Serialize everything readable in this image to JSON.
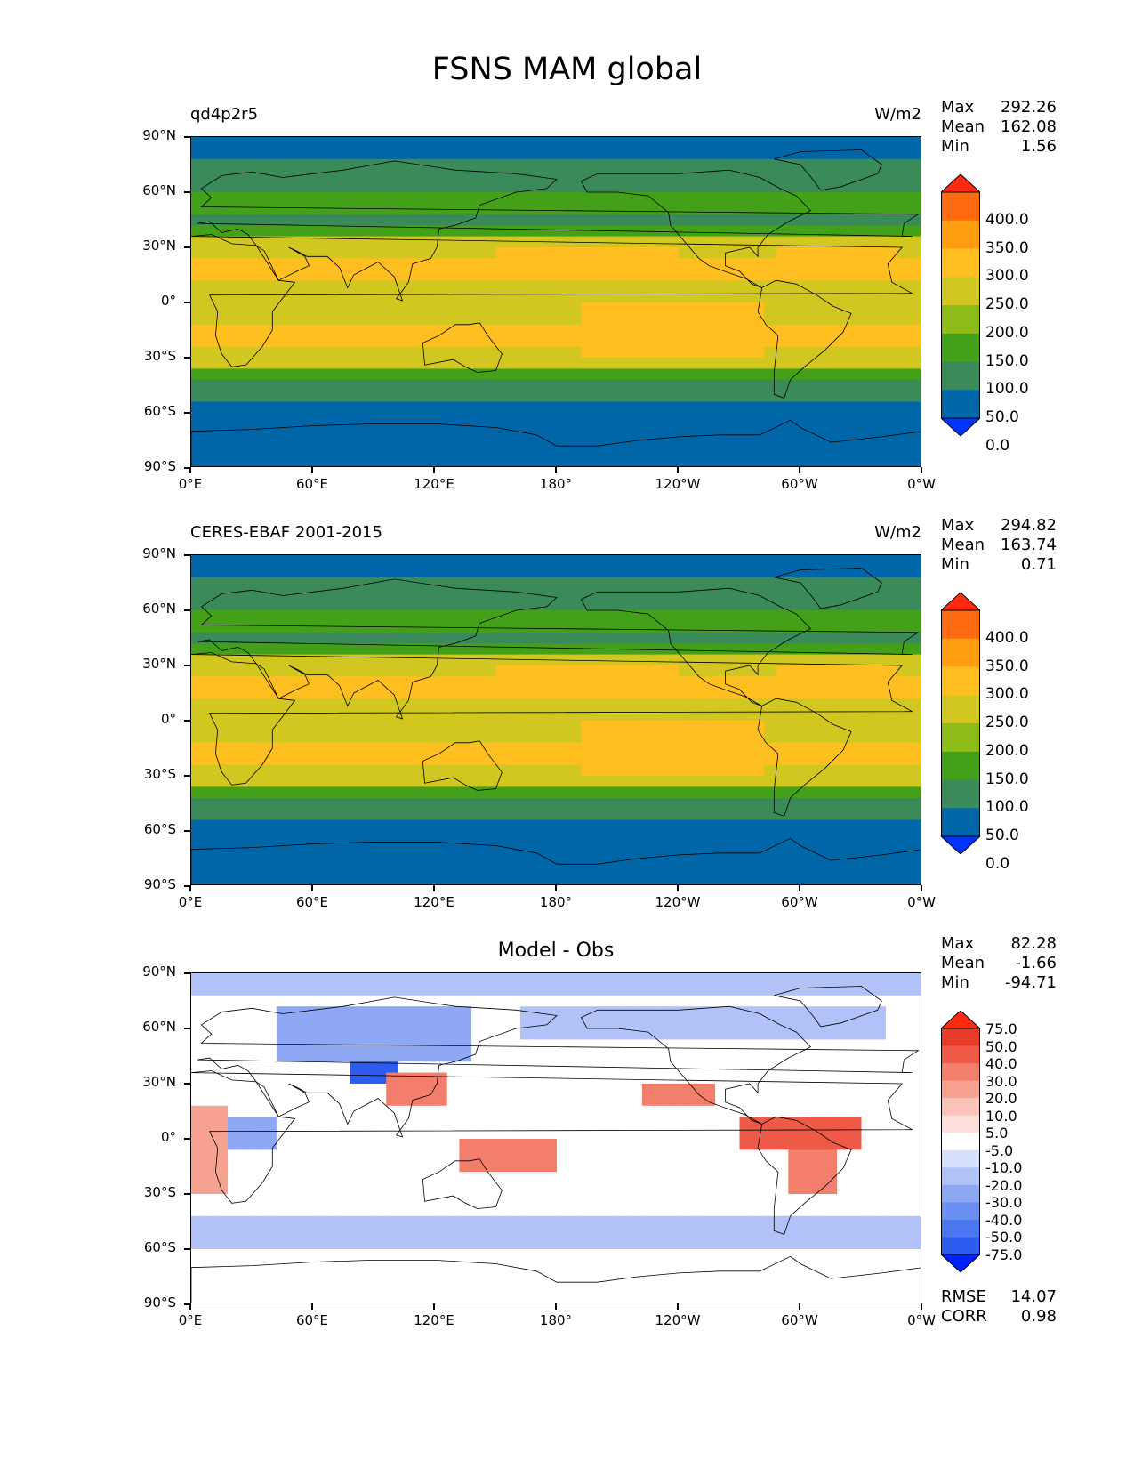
{
  "title": "FSNS MAM global",
  "y_ticks": [
    "90°N",
    "60°N",
    "30°N",
    "0°",
    "30°S",
    "60°S",
    "90°S"
  ],
  "x_ticks": [
    "0°E",
    "60°E",
    "120°E",
    "180°",
    "120°W",
    "60°W",
    "0°W"
  ],
  "panels": [
    {
      "left_label": "qd4p2r5",
      "right_label": "W/m2",
      "center_label": "",
      "stats": [
        [
          "Max",
          "292.26"
        ],
        [
          "Mean",
          "162.08"
        ],
        [
          "Min",
          "1.56"
        ]
      ],
      "extra_stats": [],
      "colorbar_labels": [
        "400.0",
        "350.0",
        "300.0",
        "250.0",
        "200.0",
        "150.0",
        "100.0",
        "50.0",
        "0.0"
      ]
    },
    {
      "left_label": "CERES-EBAF 2001-2015",
      "right_label": "W/m2",
      "center_label": "",
      "stats": [
        [
          "Max",
          "294.82"
        ],
        [
          "Mean",
          "163.74"
        ],
        [
          "Min",
          "0.71"
        ]
      ],
      "extra_stats": [],
      "colorbar_labels": [
        "400.0",
        "350.0",
        "300.0",
        "250.0",
        "200.0",
        "150.0",
        "100.0",
        "50.0",
        "0.0"
      ]
    },
    {
      "left_label": "",
      "right_label": "",
      "center_label": "Model - Obs",
      "stats": [
        [
          "Max",
          "82.28"
        ],
        [
          "Mean",
          "-1.66"
        ],
        [
          "Min",
          "-94.71"
        ]
      ],
      "extra_stats": [
        [
          "RMSE",
          "14.07"
        ],
        [
          "CORR",
          "0.98"
        ]
      ],
      "colorbar_labels": [
        "75.0",
        "50.0",
        "40.0",
        "30.0",
        "20.0",
        "10.0",
        "5.0",
        "-5.0",
        "-10.0",
        "-20.0",
        "-30.0",
        "-40.0",
        "-50.0",
        "-75.0"
      ]
    }
  ],
  "chart_data": [
    {
      "type": "heatmap",
      "title": "qd4p2r5",
      "units": "W/m2",
      "x_range": [
        0,
        360
      ],
      "y_range": [
        -90,
        90
      ],
      "levels": [
        0,
        50,
        100,
        150,
        200,
        250,
        300,
        350,
        400
      ],
      "colors": [
        "#0033ff",
        "#0066a8",
        "#3a8a5a",
        "#44a018",
        "#8dbb18",
        "#d2c721",
        "#ffbf20",
        "#ff9c10",
        "#ff6a10",
        "#ff2a10"
      ],
      "stats": {
        "max": 292.26,
        "mean": 162.08,
        "min": 1.56
      }
    },
    {
      "type": "heatmap",
      "title": "CERES-EBAF 2001-2015",
      "units": "W/m2",
      "x_range": [
        0,
        360
      ],
      "y_range": [
        -90,
        90
      ],
      "levels": [
        0,
        50,
        100,
        150,
        200,
        250,
        300,
        350,
        400
      ],
      "colors": [
        "#0033ff",
        "#0066a8",
        "#3a8a5a",
        "#44a018",
        "#8dbb18",
        "#d2c721",
        "#ffbf20",
        "#ff9c10",
        "#ff6a10",
        "#ff2a10"
      ],
      "stats": {
        "max": 294.82,
        "mean": 163.74,
        "min": 0.71
      }
    },
    {
      "type": "heatmap",
      "title": "Model - Obs",
      "x_range": [
        0,
        360
      ],
      "y_range": [
        -90,
        90
      ],
      "levels": [
        -75,
        -50,
        -40,
        -30,
        -20,
        -10,
        -5,
        5,
        10,
        20,
        30,
        40,
        50,
        75
      ],
      "colors": [
        "#0022ff",
        "#2d5cf0",
        "#4a76f0",
        "#6a8ff2",
        "#8ea8f4",
        "#b0c2f7",
        "#d6e0fb",
        "#ffffff",
        "#fde0dc",
        "#fbc2b8",
        "#f8a292",
        "#f47e6c",
        "#ef5a48",
        "#ea3a28",
        "#ff2a10"
      ],
      "stats": {
        "max": 82.28,
        "mean": -1.66,
        "min": -94.71,
        "rmse": 14.07,
        "corr": 0.98
      }
    }
  ]
}
